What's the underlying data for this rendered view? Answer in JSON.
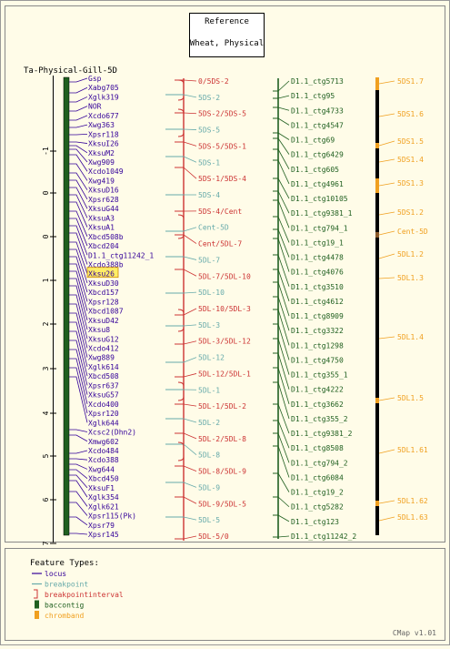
{
  "reference_box": {
    "line1": "Reference",
    "line2": "Wheat, Physical"
  },
  "map_title": "Ta-Physical-Gill-5D",
  "scale_ticks": [
    "-1",
    "0",
    "0",
    "1",
    "2",
    "3",
    "4",
    "5",
    "6",
    "7"
  ],
  "loci": [
    "Gsp",
    "Xabg705",
    "Xglk319",
    "NOR",
    "Xcdo677",
    "Xwg363",
    "Xpsr118",
    "XksuI26",
    "XksuM2",
    "Xwg909",
    "Xcdo1049",
    "Xwg419",
    "XksuD16",
    "Xpsr628",
    "XksuG44",
    "XksuA3",
    "XksuA1",
    "Xbcd508b",
    "Xbcd204",
    "D1.1_ctg11242_1",
    "Xcdo388b",
    "Xksu26",
    "XksuD30",
    "Xbcd157",
    "Xpsr128",
    "Xbcd1087",
    "XksuD42",
    "Xksu8",
    "XksuG12",
    "Xcdo412",
    "Xwg889",
    "Xglk614",
    "Xbcd508",
    "Xpsr637",
    "XksuG57",
    "Xcdo400",
    "Xpsr120",
    "Xglk644",
    "Xcsc2(Dhn2)",
    "Xmwg602",
    "Xcdo484",
    "Xcdo388",
    "Xwg644",
    "Xbcd450",
    "XksuF1",
    "Xglk354",
    "Xglk621",
    "Xpsr115(Pk)",
    "Xpsr79",
    "Xpsr145"
  ],
  "highlighted_locus": "Xksu26",
  "segments": [
    "0/5DS-2",
    "5DS-2",
    "5DS-2/5DS-5",
    "5DS-5",
    "5DS-5/5DS-1",
    "5DS-1",
    "5DS-1/5DS-4",
    "5DS-4",
    "5DS-4/Cent",
    "Cent-5D",
    "Cent/5DL-7",
    "5DL-7",
    "5DL-7/5DL-10",
    "5DL-10",
    "5DL-10/5DL-3",
    "5DL-3",
    "5DL-3/5DL-12",
    "5DL-12",
    "5DL-12/5DL-1",
    "5DL-1",
    "5DL-1/5DL-2",
    "5DL-2",
    "5DL-2/5DL-8",
    "5DL-8",
    "5DL-8/5DL-9",
    "5DL-9",
    "5DL-9/5DL-5",
    "5DL-5",
    "5DL-5/0"
  ],
  "contigs": [
    "D1.1_ctg5713",
    "D1.1_ctg95",
    "D1.1_ctg4733",
    "D1.1_ctg4547",
    "D1.1_ctg69",
    "D1.1_ctg6429",
    "D1.1_ctg605",
    "D1.1_ctg4961",
    "D1.1_ctg10105",
    "D1.1_ctg9381_1",
    "D1.1_ctg794_1",
    "D1.1_ctg19_1",
    "D1.1_ctg4478",
    "D1.1_ctg4076",
    "D1.1_ctg3510",
    "D1.1_ctg4612",
    "D1.1_ctg8909",
    "D1.1_ctg3322",
    "D1.1_ctg1298",
    "D1.1_ctg4750",
    "D1.1_ctg355_1",
    "D1.1_ctg4222",
    "D1.1_ctg3662",
    "D1.1_ctg355_2",
    "D1.1_ctg9381_2",
    "D1.1_ctg8508",
    "D1.1_ctg794_2",
    "D1.1_ctg6084",
    "D1.1_ctg19_2",
    "D1.1_ctg5282",
    "D1.1_ctg123",
    "D1.1_ctg11242_2"
  ],
  "chrombands": [
    "5DS1.7",
    "5DS1.6",
    "5DS1.5",
    "5DS1.4",
    "5DS1.3",
    "5DS1.2",
    "Cent-5D",
    "5DL1.2",
    "5DL1.3",
    "5DL1.4",
    "5DL1.5",
    "5DL1.61",
    "5DL1.62",
    "5DL1.63"
  ],
  "legend": {
    "title": "Feature Types:",
    "items": [
      {
        "label": "locus",
        "color": "#330099"
      },
      {
        "label": "breakpoint",
        "color": "#66aaaa"
      },
      {
        "label": "breakpointinterval",
        "color": "#cc3333"
      },
      {
        "label": "baccontig",
        "color": "#1f5f1f"
      },
      {
        "label": "chromband",
        "color": "#f0a020"
      }
    ]
  },
  "footer": "CMap v1.01",
  "colors": {
    "background": "#fffce8",
    "locus": "#330099",
    "breakpoint": "#66aaaa",
    "interval": "#cc3333",
    "contig": "#1f5f1f",
    "chromband": "#f0a020",
    "highlight": "#ffee66"
  }
}
